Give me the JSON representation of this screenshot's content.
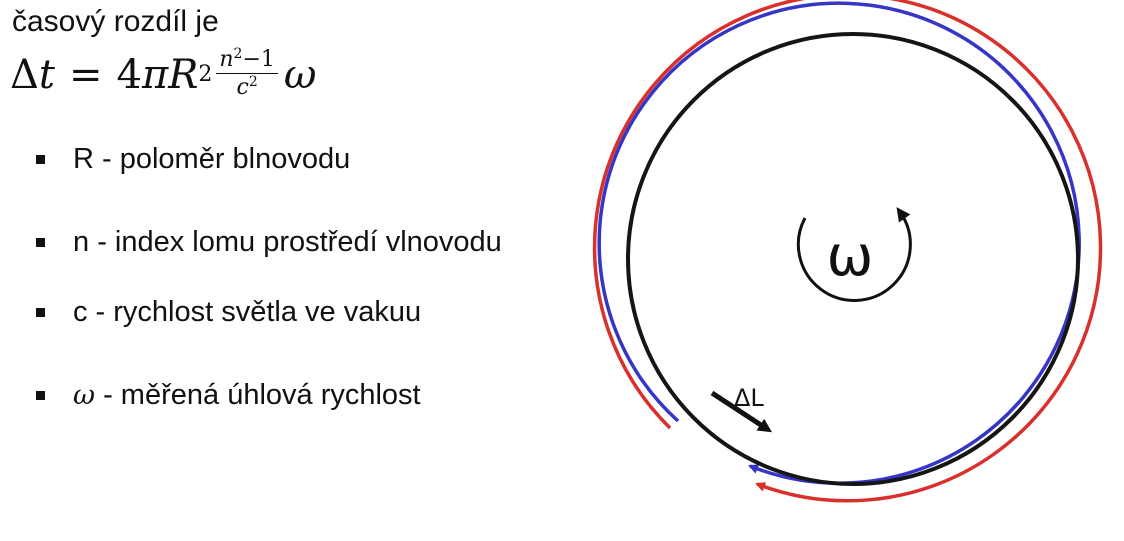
{
  "text": {
    "intro": "časový rozdíl je"
  },
  "formula": {
    "delta": "Δ",
    "t": "t",
    "equals": "=",
    "four": "4",
    "pi": "π",
    "R": "R",
    "R_exp": "2",
    "num_n": "n",
    "num_exp": "2",
    "num_rest": "−1",
    "den_c": "c",
    "den_exp": "2",
    "omega": "ω"
  },
  "params": [
    {
      "symbol": "R",
      "description": " - poloměr blnovodu"
    },
    {
      "symbol": "n",
      "description": " - index lomu prostředí vlnovodu"
    },
    {
      "symbol": "c",
      "description": " - rychlost světla ve vakuu"
    },
    {
      "symbol": "ω",
      "description": " - měřená úhlová rychlost"
    }
  ],
  "diagram": {
    "rotation_label": "ω",
    "path_diff_label": "ΔL",
    "colors": {
      "outer_loop": "#d9302c",
      "middle_loop": "#3535c8",
      "inner_loop": "#151515",
      "arrow": "#111111"
    }
  }
}
